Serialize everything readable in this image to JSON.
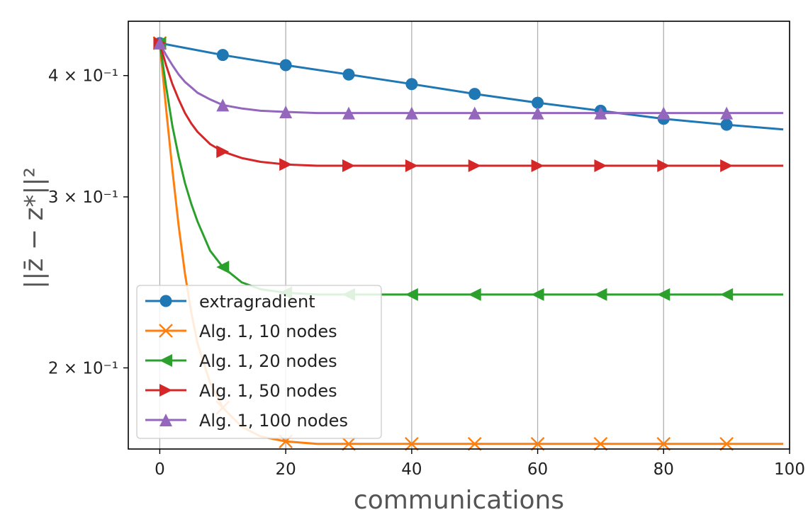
{
  "chart_data": {
    "type": "line",
    "xlabel": "communications",
    "ylabel": "||z̄ − z*||²",
    "xlim": [
      -5,
      100
    ],
    "ylim": [
      0.165,
      0.455
    ],
    "yscale": "log",
    "grid": "vertical",
    "legend_position": "lower-left",
    "xticks": [
      0,
      20,
      40,
      60,
      80,
      100
    ],
    "yticks": [
      {
        "value": 0.2,
        "label": "2 × 10⁻¹"
      },
      {
        "value": 0.3,
        "label": "3 × 10⁻¹"
      },
      {
        "value": 0.4,
        "label": "4 × 10⁻¹"
      }
    ],
    "series": [
      {
        "name": "extragradient",
        "color": "#1f77b4",
        "marker": "circle",
        "x": [
          0,
          10,
          20,
          30,
          40,
          50,
          60,
          70,
          80,
          90,
          99
        ],
        "y": [
          0.432,
          0.42,
          0.41,
          0.401,
          0.392,
          0.383,
          0.375,
          0.368,
          0.361,
          0.356,
          0.352
        ]
      },
      {
        "name": "Alg. 1, 10 nodes",
        "color": "#ff7f0e",
        "marker": "x",
        "x": [
          0,
          1,
          2,
          3,
          4,
          5,
          6,
          8,
          10,
          13,
          16,
          20,
          25,
          30,
          40,
          50,
          60,
          70,
          80,
          90,
          99
        ],
        "y": [
          0.432,
          0.37,
          0.32,
          0.28,
          0.25,
          0.228,
          0.212,
          0.193,
          0.182,
          0.174,
          0.17,
          0.168,
          0.167,
          0.167,
          0.167,
          0.167,
          0.167,
          0.167,
          0.167,
          0.167,
          0.167
        ]
      },
      {
        "name": "Alg. 1, 20 nodes",
        "color": "#2ca02c",
        "marker": "triangle-left",
        "x": [
          0,
          1,
          2,
          3,
          4,
          5,
          6,
          8,
          10,
          13,
          16,
          20,
          25,
          30,
          40,
          50,
          60,
          70,
          80,
          90,
          99
        ],
        "y": [
          0.432,
          0.39,
          0.355,
          0.33,
          0.31,
          0.295,
          0.283,
          0.264,
          0.254,
          0.245,
          0.241,
          0.239,
          0.238,
          0.238,
          0.238,
          0.238,
          0.238,
          0.238,
          0.238,
          0.238,
          0.238
        ]
      },
      {
        "name": "Alg. 1, 50 nodes",
        "color": "#d62728",
        "marker": "triangle-right",
        "x": [
          0,
          1,
          2,
          3,
          4,
          5,
          6,
          8,
          10,
          13,
          16,
          20,
          25,
          30,
          40,
          50,
          60,
          70,
          80,
          90,
          99
        ],
        "y": [
          0.432,
          0.41,
          0.392,
          0.378,
          0.366,
          0.357,
          0.35,
          0.34,
          0.334,
          0.329,
          0.326,
          0.324,
          0.323,
          0.323,
          0.323,
          0.323,
          0.323,
          0.323,
          0.323,
          0.323,
          0.323
        ]
      },
      {
        "name": "Alg. 1, 100 nodes",
        "color": "#9467bd",
        "marker": "triangle-up",
        "x": [
          0,
          1,
          2,
          3,
          4,
          5,
          6,
          8,
          10,
          13,
          16,
          20,
          25,
          30,
          40,
          50,
          60,
          70,
          80,
          90,
          99
        ],
        "y": [
          0.432,
          0.42,
          0.41,
          0.401,
          0.394,
          0.389,
          0.384,
          0.378,
          0.373,
          0.37,
          0.368,
          0.367,
          0.366,
          0.366,
          0.366,
          0.366,
          0.366,
          0.366,
          0.366,
          0.366,
          0.366
        ]
      }
    ]
  }
}
